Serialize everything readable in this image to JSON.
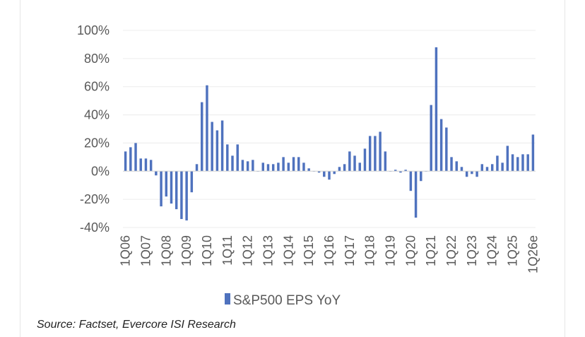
{
  "chart_data": {
    "type": "bar",
    "legend": {
      "label": "S&P500 EPS YoY",
      "placement": "bottom",
      "color": "#4f72be"
    },
    "y_ticks": [
      "100%",
      "80%",
      "60%",
      "40%",
      "20%",
      "0%",
      "-20%",
      "-40%"
    ],
    "y_tick_values": [
      100,
      80,
      60,
      40,
      20,
      0,
      -20,
      -40
    ],
    "ylim": [
      -40,
      100
    ],
    "grid": true,
    "categories_labeled": [
      "1Q06",
      "1Q07",
      "1Q08",
      "1Q09",
      "1Q10",
      "1Q11",
      "1Q12",
      "1Q13",
      "1Q14",
      "1Q15",
      "1Q16",
      "1Q17",
      "1Q18",
      "1Q19",
      "1Q20",
      "1Q21",
      "1Q22",
      "1Q23",
      "1Q24",
      "1Q25",
      "1Q26e"
    ],
    "series": [
      {
        "color": "#4f72be",
        "values": [
          14,
          17,
          20,
          9,
          9,
          8,
          -3,
          -25,
          -18,
          -23,
          -27,
          -34,
          -35,
          -15,
          5,
          49,
          61,
          35,
          29,
          36,
          19,
          11,
          19,
          8,
          7,
          8,
          0,
          6,
          5,
          5,
          6,
          10,
          6,
          10,
          10,
          6,
          2,
          0,
          -1,
          -4,
          -6,
          -2,
          3,
          5,
          14,
          11,
          6,
          16,
          25,
          25,
          28,
          14,
          0,
          1,
          -1,
          1,
          -14,
          -33,
          -7,
          0,
          47,
          88,
          37,
          31,
          10,
          7,
          3,
          -4,
          -2,
          -4,
          5,
          3,
          5,
          11,
          6,
          18,
          12,
          10,
          12,
          12,
          26
        ]
      }
    ]
  },
  "source": "Source: Factset, Evercore ISI Research"
}
